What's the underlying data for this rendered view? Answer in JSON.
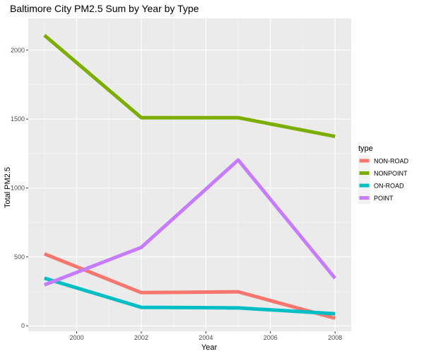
{
  "chart_data": {
    "type": "line",
    "title": "Baltimore City PM2.5 Sum by Year by Type",
    "xlabel": "Year",
    "ylabel": "Total PM2.5",
    "x": [
      1999,
      2002,
      2005,
      2008
    ],
    "xlim": [
      1998.5,
      2008.5
    ],
    "ylim": [
      -40,
      2230
    ],
    "xticks": [
      2000,
      2002,
      2004,
      2006,
      2008
    ],
    "yticks": [
      0,
      500,
      1000,
      1500,
      2000
    ],
    "grid": true,
    "legend": {
      "title": "type",
      "placement": "right"
    },
    "series": [
      {
        "name": "NON-ROAD",
        "color": "#F8766D",
        "values": [
          522,
          241,
          247,
          55
        ]
      },
      {
        "name": "NONPOINT",
        "color": "#7CAE00",
        "values": [
          2108,
          1510,
          1510,
          1374
        ]
      },
      {
        "name": "ON-ROAD",
        "color": "#00BFC4",
        "values": [
          346,
          134,
          130,
          88
        ]
      },
      {
        "name": "POINT",
        "color": "#C77CFF",
        "values": [
          297,
          569,
          1203,
          345
        ]
      }
    ]
  }
}
